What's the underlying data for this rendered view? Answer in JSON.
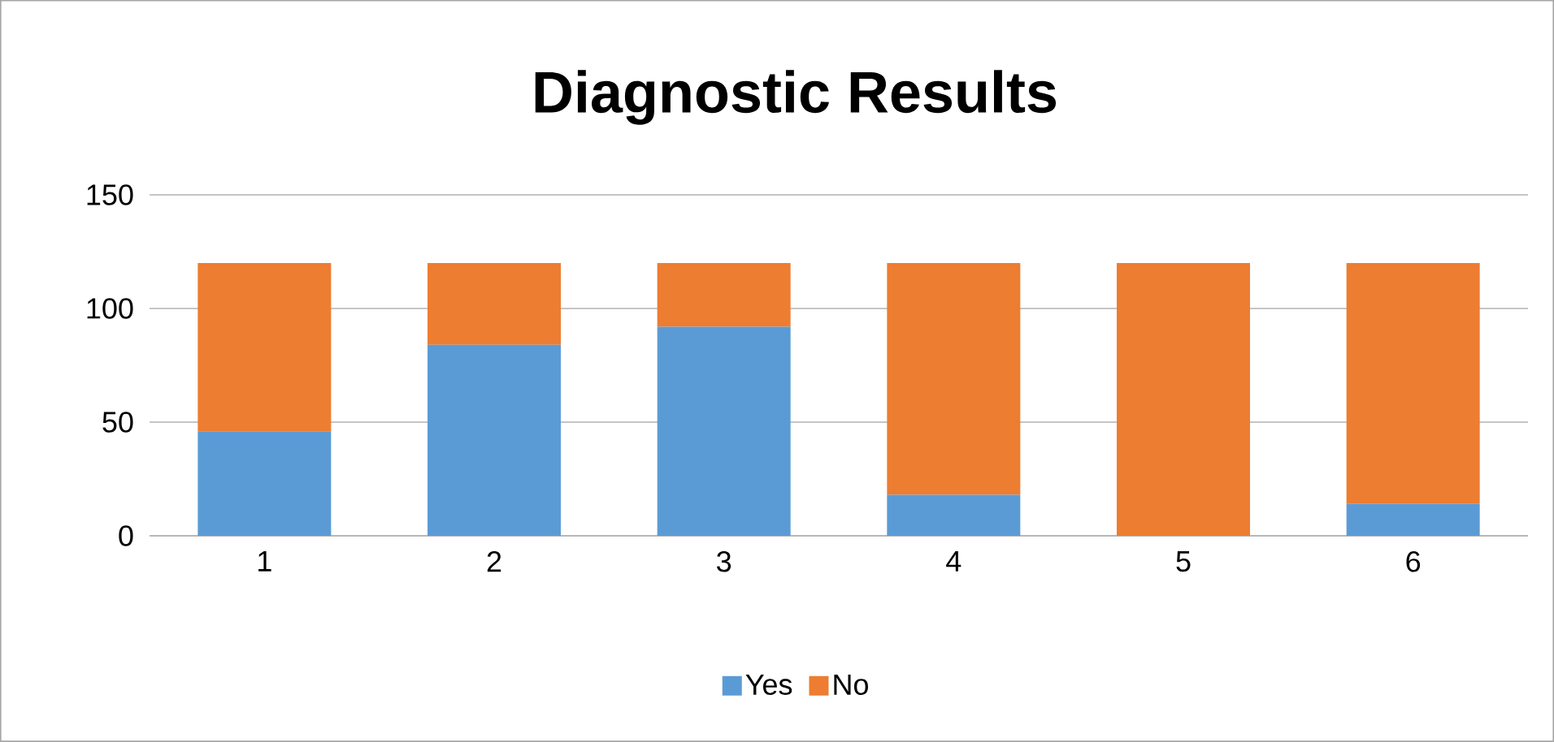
{
  "chart_data": {
    "type": "bar",
    "title": "Diagnostic Results",
    "stacked": true,
    "categories": [
      "1",
      "2",
      "3",
      "4",
      "5",
      "6"
    ],
    "series": [
      {
        "name": "Yes",
        "color": "#5b9bd5",
        "values": [
          46,
          84,
          92,
          18,
          0,
          14
        ]
      },
      {
        "name": "No",
        "color": "#ed7d31",
        "values": [
          74,
          36,
          28,
          102,
          120,
          106
        ]
      }
    ],
    "ylim": [
      0,
      150
    ],
    "yticks": [
      0,
      50,
      100,
      150
    ],
    "grid": "y",
    "legend": "bottom"
  }
}
